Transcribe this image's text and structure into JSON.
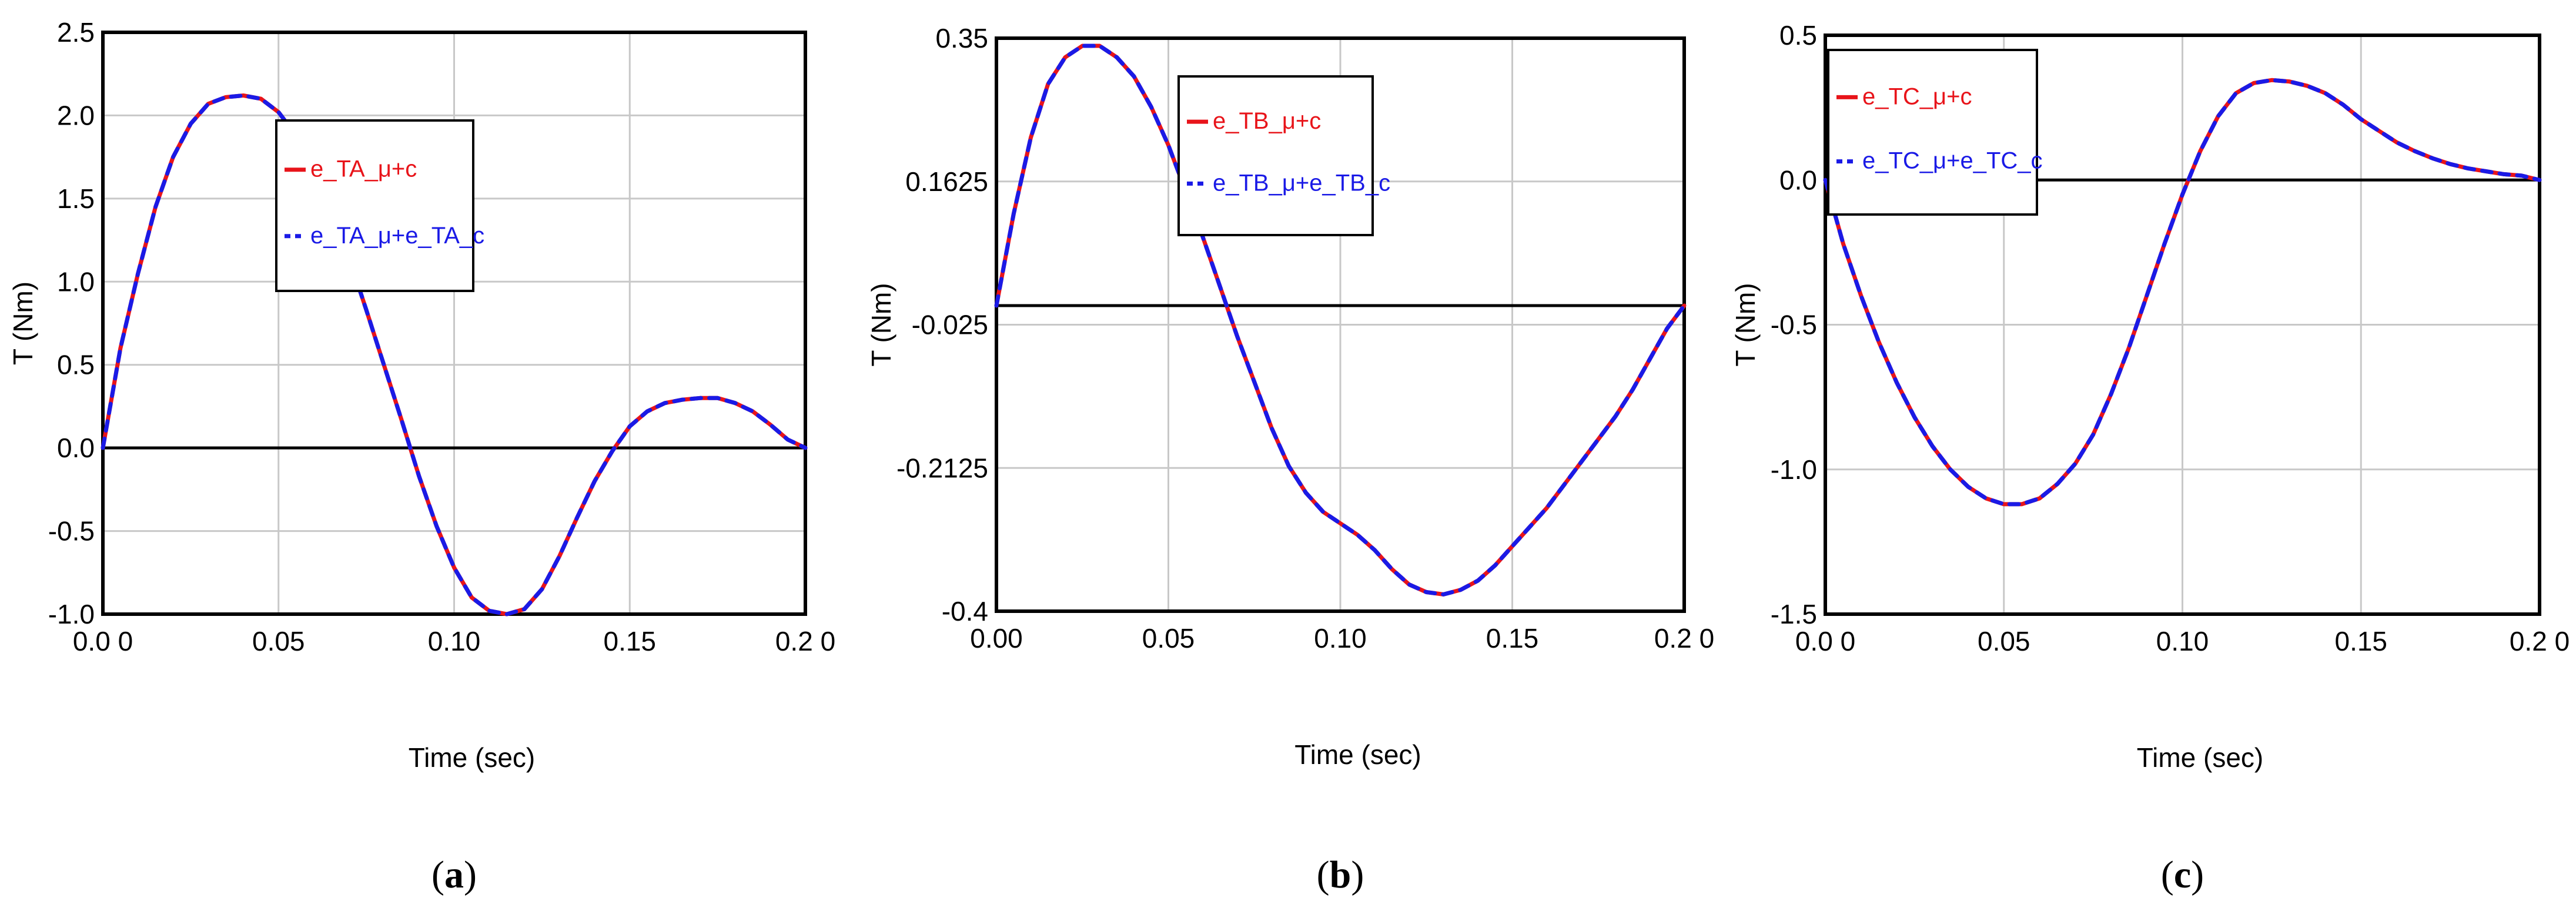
{
  "chart_data": [
    {
      "type": "line",
      "panel_label": "(a)",
      "panel_letter": "a",
      "xlabel": "Time (sec)",
      "ylabel": "T (Nm)",
      "xlim": [
        0.0,
        0.2
      ],
      "ylim": [
        -1.0,
        2.5
      ],
      "xticks": [
        0.0,
        0.05,
        0.1,
        0.15,
        0.2
      ],
      "xtick_labels": [
        "0.0 0",
        "0.05",
        "0.10",
        "0.15",
        "0.2 0"
      ],
      "yticks": [
        -1.0,
        -0.5,
        0.0,
        0.5,
        1.0,
        1.5,
        2.0,
        2.5
      ],
      "ytick_labels": [
        "-1.0",
        "-0.5",
        "0.0",
        "0.5",
        "1.0",
        "1.5",
        "2.0",
        "2.5"
      ],
      "grid": true,
      "zero_line": 0.0,
      "legend_position": "top-center",
      "series": [
        {
          "name": "e_TA_μ+c",
          "color": "#e8141a",
          "style": "solid",
          "x": [
            0.0,
            0.005,
            0.01,
            0.015,
            0.02,
            0.025,
            0.03,
            0.035,
            0.04,
            0.045,
            0.05,
            0.055,
            0.06,
            0.065,
            0.07,
            0.075,
            0.08,
            0.085,
            0.09,
            0.095,
            0.1,
            0.105,
            0.11,
            0.115,
            0.12,
            0.125,
            0.13,
            0.135,
            0.14,
            0.145,
            0.15,
            0.155,
            0.16,
            0.165,
            0.17,
            0.175,
            0.18,
            0.185,
            0.19,
            0.195,
            0.2
          ],
          "y": [
            0.0,
            0.6,
            1.05,
            1.45,
            1.75,
            1.95,
            2.07,
            2.11,
            2.12,
            2.1,
            2.02,
            1.88,
            1.68,
            1.44,
            1.15,
            0.83,
            0.5,
            0.17,
            -0.17,
            -0.47,
            -0.72,
            -0.9,
            -0.98,
            -1.0,
            -0.97,
            -0.85,
            -0.65,
            -0.42,
            -0.2,
            -0.02,
            0.13,
            0.22,
            0.27,
            0.29,
            0.3,
            0.3,
            0.27,
            0.22,
            0.14,
            0.05,
            0.0
          ]
        },
        {
          "name": "e_TA_μ+e_TA_c",
          "color": "#1a1ae6",
          "style": "dashed",
          "x": [
            0.0,
            0.005,
            0.01,
            0.015,
            0.02,
            0.025,
            0.03,
            0.035,
            0.04,
            0.045,
            0.05,
            0.055,
            0.06,
            0.065,
            0.07,
            0.075,
            0.08,
            0.085,
            0.09,
            0.095,
            0.1,
            0.105,
            0.11,
            0.115,
            0.12,
            0.125,
            0.13,
            0.135,
            0.14,
            0.145,
            0.15,
            0.155,
            0.16,
            0.165,
            0.17,
            0.175,
            0.18,
            0.185,
            0.19,
            0.195,
            0.2
          ],
          "y": [
            0.0,
            0.6,
            1.05,
            1.45,
            1.75,
            1.95,
            2.07,
            2.11,
            2.12,
            2.1,
            2.02,
            1.88,
            1.68,
            1.44,
            1.15,
            0.83,
            0.5,
            0.17,
            -0.17,
            -0.47,
            -0.72,
            -0.9,
            -0.98,
            -1.0,
            -0.97,
            -0.85,
            -0.65,
            -0.42,
            -0.2,
            -0.02,
            0.13,
            0.22,
            0.27,
            0.29,
            0.3,
            0.3,
            0.27,
            0.22,
            0.14,
            0.05,
            0.0
          ]
        }
      ]
    },
    {
      "type": "line",
      "panel_label": "(b)",
      "panel_letter": "b",
      "xlabel": "Time (sec)",
      "ylabel": "T (Nm)",
      "xlim": [
        0.0,
        0.2
      ],
      "ylim": [
        -0.4,
        0.35
      ],
      "xticks": [
        0.0,
        0.05,
        0.1,
        0.15,
        0.2
      ],
      "xtick_labels": [
        "0.00",
        "0.05",
        "0.10",
        "0.15",
        "0.2 0"
      ],
      "yticks": [
        -0.4,
        -0.2125,
        -0.025,
        0.1625,
        0.35
      ],
      "ytick_labels": [
        "-0.4",
        "-0.2125",
        "-0.025",
        "0.1625",
        "0.35"
      ],
      "grid": true,
      "zero_line": 0.0,
      "legend_position": "top-center",
      "series": [
        {
          "name": "e_TB_μ+c",
          "color": "#e8141a",
          "style": "solid",
          "x": [
            0.0,
            0.005,
            0.01,
            0.015,
            0.02,
            0.025,
            0.03,
            0.035,
            0.04,
            0.045,
            0.05,
            0.055,
            0.06,
            0.065,
            0.07,
            0.075,
            0.08,
            0.085,
            0.09,
            0.095,
            0.1,
            0.105,
            0.11,
            0.115,
            0.12,
            0.125,
            0.13,
            0.135,
            0.14,
            0.145,
            0.15,
            0.155,
            0.16,
            0.165,
            0.17,
            0.175,
            0.18,
            0.185,
            0.19,
            0.195,
            0.2
          ],
          "y": [
            0.0,
            0.12,
            0.22,
            0.29,
            0.325,
            0.34,
            0.34,
            0.325,
            0.3,
            0.26,
            0.21,
            0.15,
            0.09,
            0.025,
            -0.04,
            -0.1,
            -0.16,
            -0.21,
            -0.245,
            -0.27,
            -0.285,
            -0.3,
            -0.32,
            -0.345,
            -0.365,
            -0.375,
            -0.378,
            -0.372,
            -0.36,
            -0.34,
            -0.315,
            -0.29,
            -0.265,
            -0.235,
            -0.205,
            -0.175,
            -0.145,
            -0.11,
            -0.07,
            -0.03,
            0.0
          ]
        },
        {
          "name": "e_TB_μ+e_TB_c",
          "color": "#1a1ae6",
          "style": "dashed",
          "x": [
            0.0,
            0.005,
            0.01,
            0.015,
            0.02,
            0.025,
            0.03,
            0.035,
            0.04,
            0.045,
            0.05,
            0.055,
            0.06,
            0.065,
            0.07,
            0.075,
            0.08,
            0.085,
            0.09,
            0.095,
            0.1,
            0.105,
            0.11,
            0.115,
            0.12,
            0.125,
            0.13,
            0.135,
            0.14,
            0.145,
            0.15,
            0.155,
            0.16,
            0.165,
            0.17,
            0.175,
            0.18,
            0.185,
            0.19,
            0.195,
            0.2
          ],
          "y": [
            0.0,
            0.12,
            0.22,
            0.29,
            0.325,
            0.34,
            0.34,
            0.325,
            0.3,
            0.26,
            0.21,
            0.15,
            0.09,
            0.025,
            -0.04,
            -0.1,
            -0.16,
            -0.21,
            -0.245,
            -0.27,
            -0.285,
            -0.3,
            -0.32,
            -0.345,
            -0.365,
            -0.375,
            -0.378,
            -0.372,
            -0.36,
            -0.34,
            -0.315,
            -0.29,
            -0.265,
            -0.235,
            -0.205,
            -0.175,
            -0.145,
            -0.11,
            -0.07,
            -0.03,
            0.0
          ]
        }
      ]
    },
    {
      "type": "line",
      "panel_label": "(c)",
      "panel_letter": "c",
      "xlabel": "Time (sec)",
      "ylabel": "T (Nm)",
      "xlim": [
        0.0,
        0.2
      ],
      "ylim": [
        -1.5,
        0.5
      ],
      "xticks": [
        0.0,
        0.05,
        0.1,
        0.15,
        0.2
      ],
      "xtick_labels": [
        "0.0 0",
        "0.05",
        "0.10",
        "0.15",
        "0.2 0"
      ],
      "yticks": [
        -1.5,
        -1.0,
        -0.5,
        0.0,
        0.5
      ],
      "ytick_labels": [
        "-1.5",
        "-1.0",
        "-0.5",
        "0.0",
        "0.5"
      ],
      "grid": true,
      "zero_line": 0.0,
      "legend_position": "top-left",
      "series": [
        {
          "name": "e_TC_μ+c",
          "color": "#e8141a",
          "style": "solid",
          "x": [
            0.0,
            0.005,
            0.01,
            0.015,
            0.02,
            0.025,
            0.03,
            0.035,
            0.04,
            0.045,
            0.05,
            0.055,
            0.06,
            0.065,
            0.07,
            0.075,
            0.08,
            0.085,
            0.09,
            0.095,
            0.1,
            0.105,
            0.11,
            0.115,
            0.12,
            0.125,
            0.13,
            0.135,
            0.14,
            0.145,
            0.15,
            0.155,
            0.16,
            0.165,
            0.17,
            0.175,
            0.18,
            0.185,
            0.19,
            0.195,
            0.2
          ],
          "y": [
            0.0,
            -0.22,
            -0.4,
            -0.56,
            -0.7,
            -0.82,
            -0.92,
            -1.0,
            -1.06,
            -1.1,
            -1.12,
            -1.12,
            -1.1,
            -1.05,
            -0.98,
            -0.88,
            -0.74,
            -0.58,
            -0.4,
            -0.22,
            -0.05,
            0.1,
            0.22,
            0.3,
            0.335,
            0.345,
            0.34,
            0.325,
            0.3,
            0.26,
            0.21,
            0.17,
            0.13,
            0.1,
            0.075,
            0.055,
            0.04,
            0.03,
            0.02,
            0.015,
            0.0
          ]
        },
        {
          "name": "e_TC_μ+e_TC_c",
          "color": "#1a1ae6",
          "style": "dashed",
          "x": [
            0.0,
            0.005,
            0.01,
            0.015,
            0.02,
            0.025,
            0.03,
            0.035,
            0.04,
            0.045,
            0.05,
            0.055,
            0.06,
            0.065,
            0.07,
            0.075,
            0.08,
            0.085,
            0.09,
            0.095,
            0.1,
            0.105,
            0.11,
            0.115,
            0.12,
            0.125,
            0.13,
            0.135,
            0.14,
            0.145,
            0.15,
            0.155,
            0.16,
            0.165,
            0.17,
            0.175,
            0.18,
            0.185,
            0.19,
            0.195,
            0.2
          ],
          "y": [
            0.0,
            -0.22,
            -0.4,
            -0.56,
            -0.7,
            -0.82,
            -0.92,
            -1.0,
            -1.06,
            -1.1,
            -1.12,
            -1.12,
            -1.1,
            -1.05,
            -0.98,
            -0.88,
            -0.74,
            -0.58,
            -0.4,
            -0.22,
            -0.05,
            0.1,
            0.22,
            0.3,
            0.335,
            0.345,
            0.34,
            0.325,
            0.3,
            0.26,
            0.21,
            0.17,
            0.13,
            0.1,
            0.075,
            0.055,
            0.04,
            0.03,
            0.02,
            0.015,
            0.0
          ]
        }
      ]
    }
  ]
}
